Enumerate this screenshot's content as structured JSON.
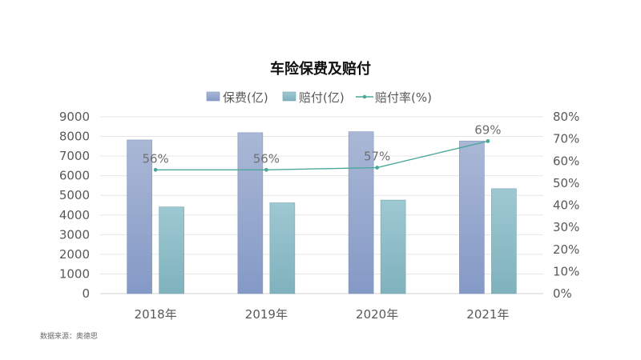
{
  "footer": {
    "source": "数据来源：奥德思"
  },
  "chart_data": {
    "type": "bar",
    "title": "车险保费及赔付",
    "categories": [
      "2018年",
      "2019年",
      "2020年",
      "2021年"
    ],
    "series": [
      {
        "name": "保费(亿)",
        "type": "bar",
        "axis": "left",
        "values": [
          7820,
          8190,
          8240,
          7770
        ]
      },
      {
        "name": "赔付(亿)",
        "type": "bar",
        "axis": "left",
        "values": [
          4410,
          4620,
          4760,
          5340
        ]
      },
      {
        "name": "赔付率(%)",
        "type": "line",
        "axis": "right",
        "values": [
          56,
          56,
          57,
          69
        ],
        "data_labels": [
          "56%",
          "56%",
          "57%",
          "69%"
        ]
      }
    ],
    "y_left": {
      "ylim": [
        0,
        9000
      ],
      "ticks": [
        "0",
        "1000",
        "2000",
        "3000",
        "4000",
        "5000",
        "6000",
        "7000",
        "8000",
        "9000"
      ]
    },
    "y_right": {
      "ylim": [
        0,
        80
      ],
      "ticks": [
        "0%",
        "10%",
        "20%",
        "30%",
        "40%",
        "50%",
        "60%",
        "70%",
        "80%"
      ]
    },
    "legend_position": "top",
    "grid": true,
    "colors": {
      "premium": "#8fa5cc",
      "claims": "#86bcc6",
      "ratio": "#4aa89a",
      "grid": "#e6e6e6",
      "text": "#595959"
    }
  }
}
